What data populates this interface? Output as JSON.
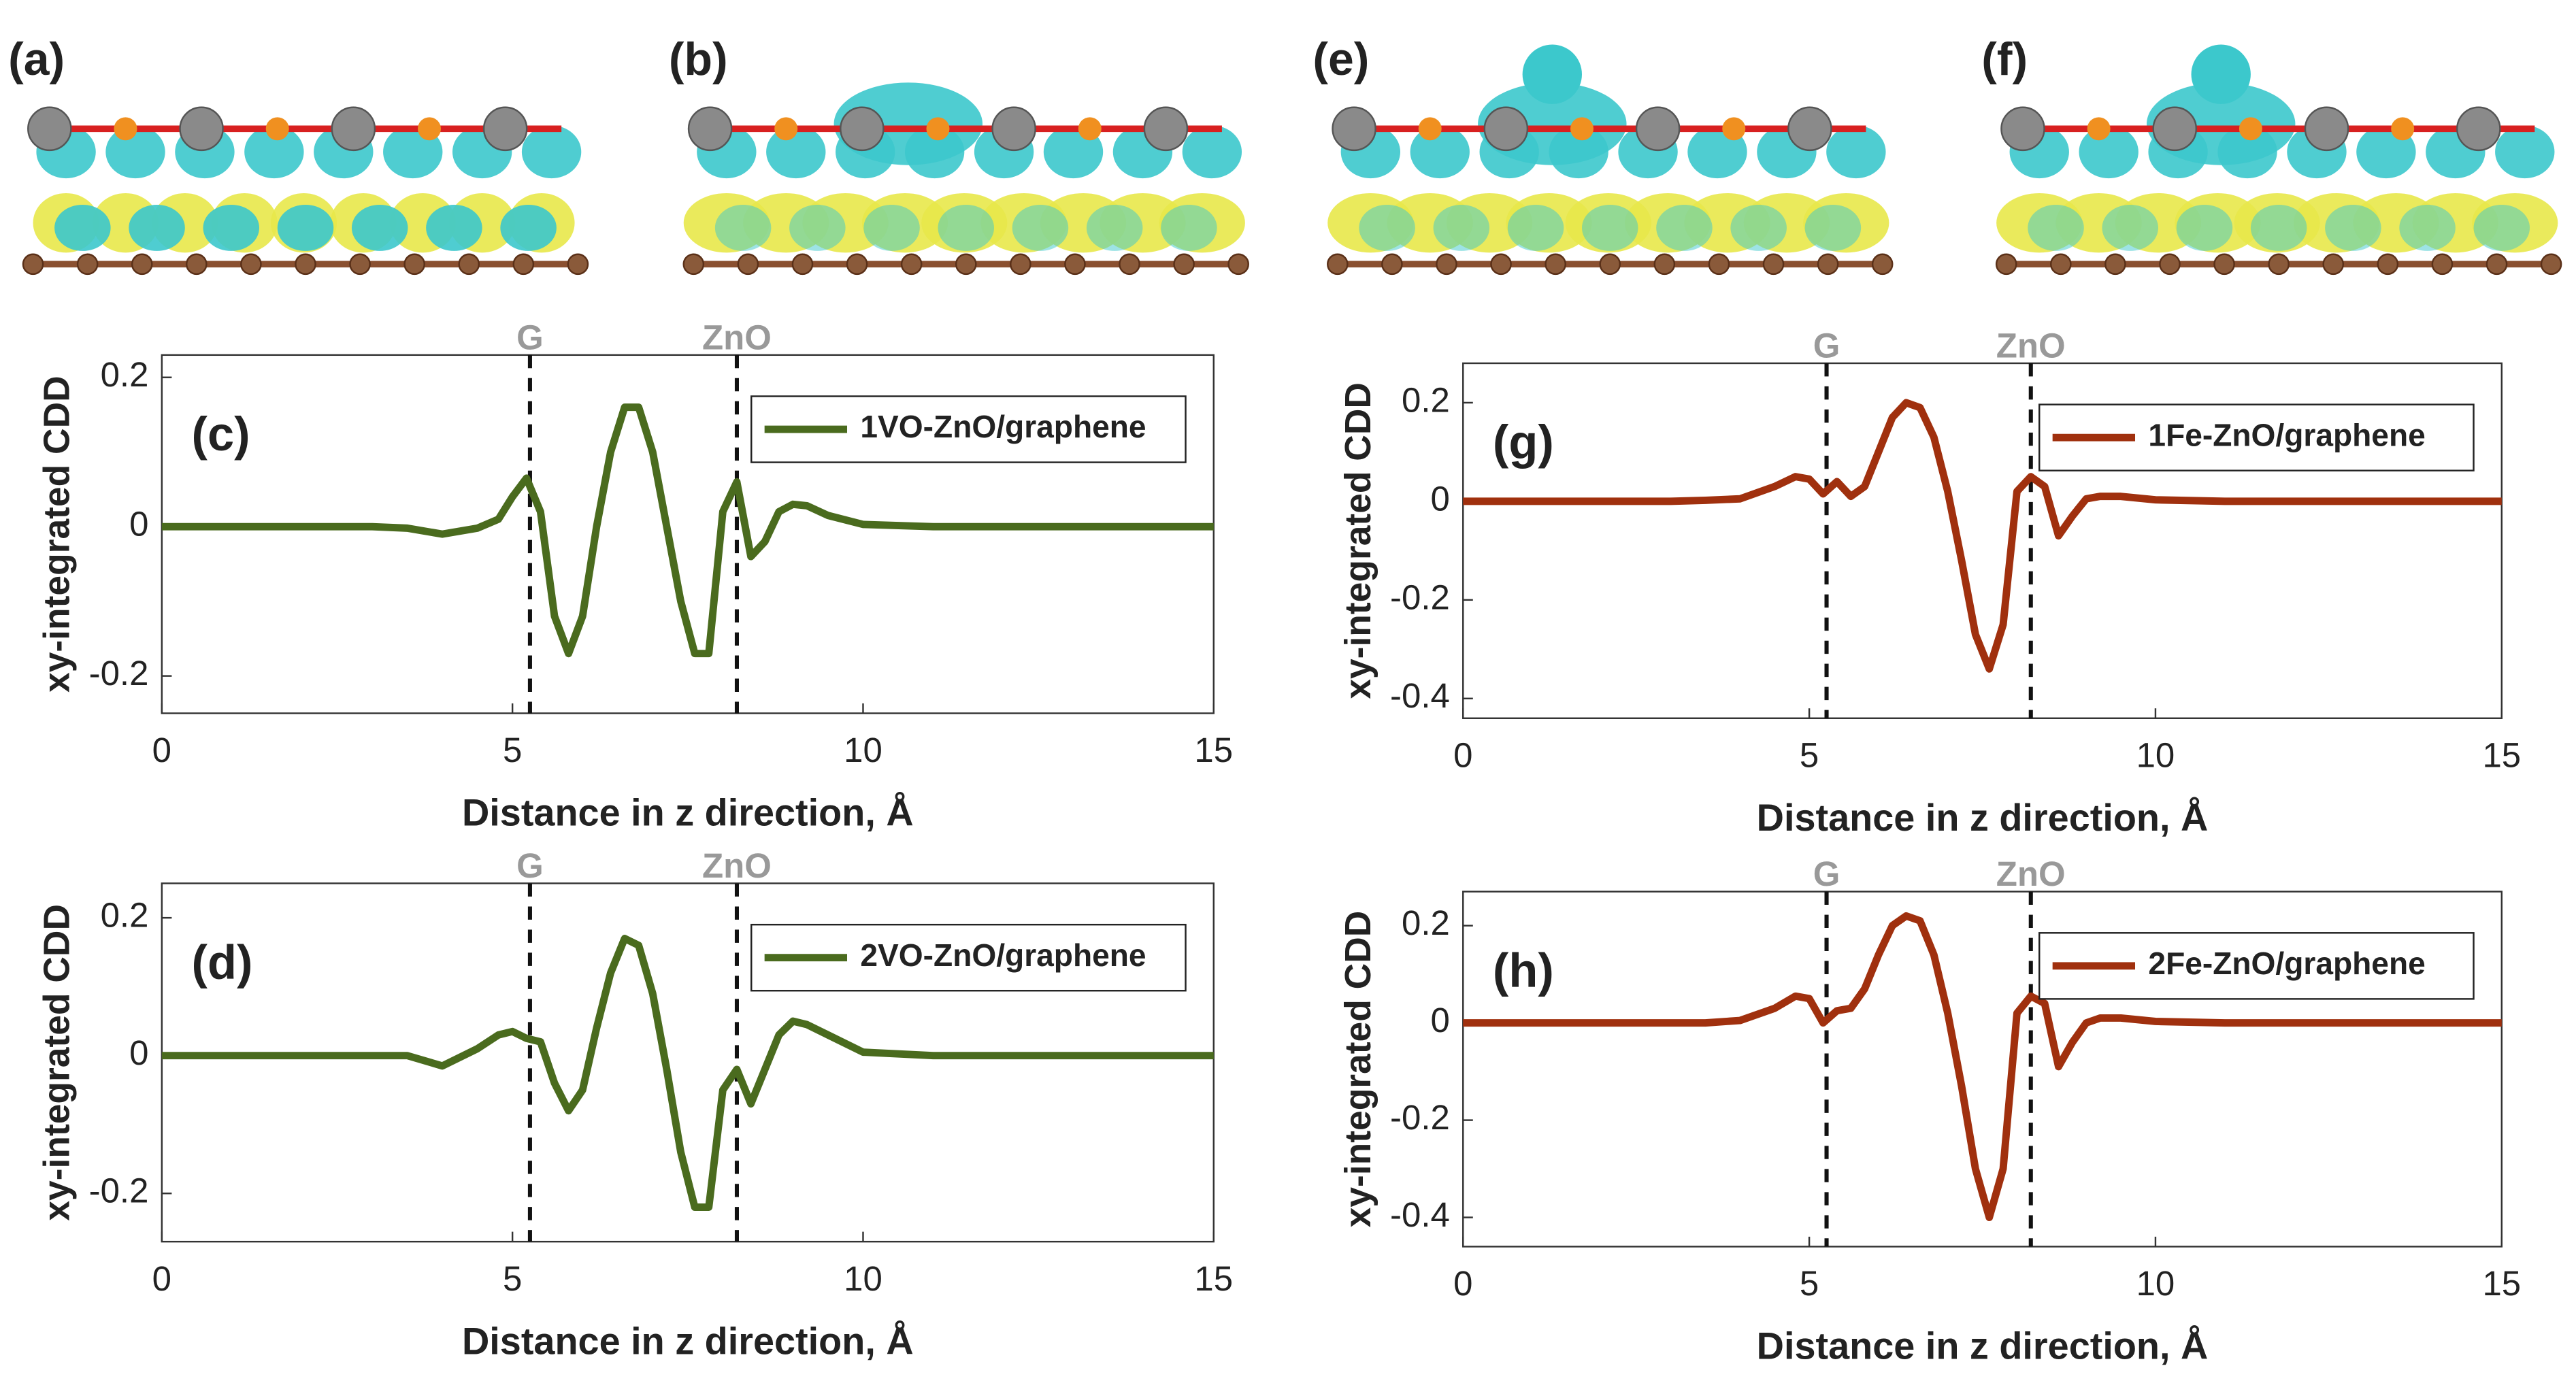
{
  "images": [
    {
      "label": "(a)"
    },
    {
      "label": "(b)"
    },
    {
      "label": "(e)"
    },
    {
      "label": "(f)"
    }
  ],
  "chart_data": [
    {
      "type": "line",
      "panel_label": "(c)",
      "ylabel": "xy-integrated CDD",
      "xlabel": "Distance in z direction, Å",
      "x": [
        0,
        1,
        2,
        3,
        3.5,
        4,
        4.5,
        4.8,
        5,
        5.2,
        5.4,
        5.6,
        5.8,
        6,
        6.2,
        6.4,
        6.6,
        6.8,
        7,
        7.2,
        7.4,
        7.6,
        7.8,
        8,
        8.2,
        8.4,
        8.6,
        8.8,
        9,
        9.2,
        9.5,
        10,
        11,
        12,
        13,
        14,
        15
      ],
      "series": [
        {
          "name": "1VO-ZnO/graphene",
          "color": "#4a6b1e",
          "values": [
            0,
            0,
            0,
            0,
            -0.002,
            -0.01,
            -0.002,
            0.01,
            0.04,
            0.065,
            0.02,
            -0.12,
            -0.17,
            -0.12,
            0,
            0.1,
            0.16,
            0.16,
            0.1,
            0,
            -0.1,
            -0.17,
            -0.17,
            0.02,
            0.06,
            -0.04,
            -0.02,
            0.02,
            0.03,
            0.028,
            0.015,
            0.003,
            0,
            0,
            0,
            0,
            0
          ]
        }
      ],
      "xlim": [
        0,
        15
      ],
      "xticks": [
        0,
        5,
        10,
        15
      ],
      "ylim": [
        -0.25,
        0.23
      ],
      "yticks": [
        -0.2,
        0,
        0.2
      ],
      "annotations": [
        {
          "text": "G",
          "x": 5.25
        },
        {
          "text": "ZnO",
          "x": 8.2
        }
      ],
      "legend": "upper right"
    },
    {
      "type": "line",
      "panel_label": "(d)",
      "ylabel": "xy-integrated CDD",
      "xlabel": "Distance in z direction, Å",
      "x": [
        0,
        1,
        2,
        3,
        3.5,
        4,
        4.5,
        4.8,
        5,
        5.2,
        5.4,
        5.6,
        5.8,
        6,
        6.2,
        6.4,
        6.6,
        6.8,
        7,
        7.2,
        7.4,
        7.6,
        7.8,
        8,
        8.2,
        8.4,
        8.6,
        8.8,
        9,
        9.2,
        9.5,
        10,
        11,
        12,
        13,
        14,
        15
      ],
      "series": [
        {
          "name": "2VO-ZnO/graphene",
          "color": "#4a6b1e",
          "values": [
            0,
            0,
            0,
            0,
            0,
            -0.015,
            0.01,
            0.03,
            0.035,
            0.025,
            0.02,
            -0.04,
            -0.08,
            -0.05,
            0.04,
            0.12,
            0.17,
            0.16,
            0.09,
            -0.02,
            -0.14,
            -0.22,
            -0.22,
            -0.05,
            -0.02,
            -0.07,
            -0.02,
            0.03,
            0.05,
            0.045,
            0.03,
            0.005,
            0,
            0,
            0,
            0,
            0
          ]
        }
      ],
      "xlim": [
        0,
        15
      ],
      "xticks": [
        0,
        5,
        10,
        15
      ],
      "ylim": [
        -0.27,
        0.25
      ],
      "yticks": [
        -0.2,
        0,
        0.2
      ],
      "annotations": [
        {
          "text": "G",
          "x": 5.25
        },
        {
          "text": "ZnO",
          "x": 8.2
        }
      ],
      "legend": "upper right"
    },
    {
      "type": "line",
      "panel_label": "(g)",
      "ylabel": "xy-integrated CDD",
      "xlabel": "Distance in z direction, Å",
      "x": [
        0,
        1,
        2,
        3,
        3.5,
        4,
        4.5,
        4.8,
        5,
        5.2,
        5.4,
        5.6,
        5.8,
        6,
        6.2,
        6.4,
        6.6,
        6.8,
        7,
        7.2,
        7.4,
        7.6,
        7.8,
        8,
        8.2,
        8.4,
        8.6,
        8.8,
        9,
        9.2,
        9.5,
        10,
        11,
        12,
        13,
        14,
        15
      ],
      "series": [
        {
          "name": "1Fe-ZnO/graphene",
          "color": "#a0300e",
          "values": [
            0,
            0,
            0,
            0,
            0.002,
            0.005,
            0.03,
            0.05,
            0.045,
            0.015,
            0.04,
            0.01,
            0.03,
            0.1,
            0.17,
            0.2,
            0.19,
            0.13,
            0.02,
            -0.12,
            -0.27,
            -0.34,
            -0.25,
            0.02,
            0.05,
            0.03,
            -0.07,
            -0.03,
            0.005,
            0.01,
            0.01,
            0.003,
            0,
            0,
            0,
            0,
            0
          ]
        }
      ],
      "xlim": [
        0,
        15
      ],
      "xticks": [
        0,
        5,
        10,
        15
      ],
      "ylim": [
        -0.44,
        0.28
      ],
      "yticks": [
        -0.4,
        -0.2,
        0,
        0.2
      ],
      "annotations": [
        {
          "text": "G",
          "x": 5.25
        },
        {
          "text": "ZnO",
          "x": 8.2
        }
      ],
      "legend": "upper right"
    },
    {
      "type": "line",
      "panel_label": "(h)",
      "ylabel": "xy-integrated CDD",
      "xlabel": "Distance in z direction, Å",
      "x": [
        0,
        1,
        2,
        3,
        3.5,
        4,
        4.5,
        4.8,
        5,
        5.2,
        5.4,
        5.6,
        5.8,
        6,
        6.2,
        6.4,
        6.6,
        6.8,
        7,
        7.2,
        7.4,
        7.6,
        7.8,
        8,
        8.2,
        8.4,
        8.6,
        8.8,
        9,
        9.2,
        9.5,
        10,
        11,
        12,
        13,
        14,
        15
      ],
      "series": [
        {
          "name": "2Fe-ZnO/graphene",
          "color": "#a0300e",
          "values": [
            0,
            0,
            0,
            0,
            0,
            0.005,
            0.03,
            0.055,
            0.05,
            0,
            0.025,
            0.03,
            0.07,
            0.14,
            0.2,
            0.22,
            0.21,
            0.14,
            0.02,
            -0.13,
            -0.3,
            -0.4,
            -0.3,
            0.02,
            0.055,
            0.04,
            -0.09,
            -0.04,
            0,
            0.01,
            0.01,
            0.003,
            0,
            0,
            0,
            0,
            0
          ]
        }
      ],
      "xlim": [
        0,
        15
      ],
      "xticks": [
        0,
        5,
        10,
        15
      ],
      "ylim": [
        -0.46,
        0.27
      ],
      "yticks": [
        -0.4,
        -0.2,
        0,
        0.2
      ],
      "annotations": [
        {
          "text": "G",
          "x": 5.25
        },
        {
          "text": "ZnO",
          "x": 8.2
        }
      ],
      "legend": "upper right"
    }
  ]
}
